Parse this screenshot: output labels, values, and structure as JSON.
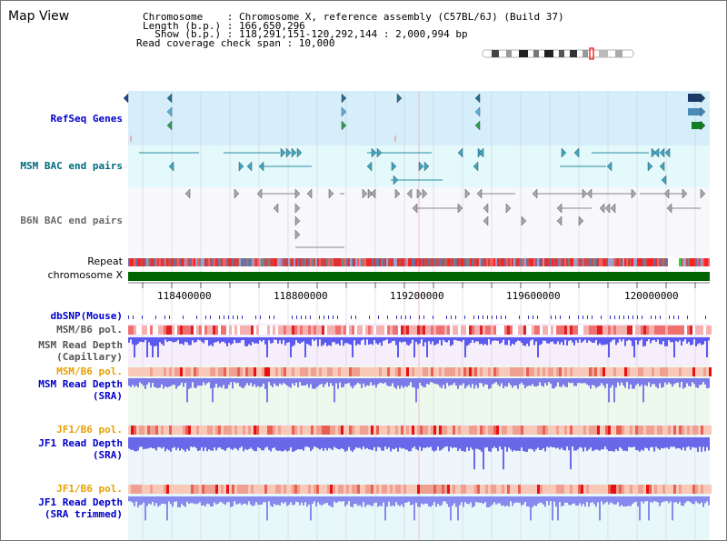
{
  "page": {
    "title": "Map View"
  },
  "info": {
    "chromosome": "Chromosome    : Chromosome X, reference assembly (C57BL/6J) (Build 37)",
    "length": "Length (b.p.) : 166,650,296",
    "show": "  Show (b.p.) : 118,291,151-120,292,144 : 2,000,994 bp",
    "coverage": "Read coverage check span : 10,000"
  },
  "tracks": {
    "refseq": "RefSeq Genes",
    "msm_bac": "MSM BAC end pairs",
    "b6n_bac": "B6N BAC end pairs",
    "repeat": "Repeat",
    "chromosome": "chromosome X",
    "dbsnp": "dbSNP(Mouse)",
    "msm_b6_pol_1": "MSM/B6 pol.",
    "msm_depth_cap_1": "MSM Read Depth",
    "msm_depth_cap_2": "(Capillary)",
    "msm_b6_pol_2": "MSM/B6 pol.",
    "msm_depth_sra_1": "MSM Read Depth",
    "msm_depth_sra_2": "(SRA)",
    "jf1_b6_pol_1": "JF1/B6 pol.",
    "jf1_depth_sra_1": "JF1 Read Depth",
    "jf1_depth_sra_2": "(SRA)",
    "jf1_b6_pol_2": "JF1/B6 pol.",
    "jf1_depth_trim_1": "JF1 Read Depth",
    "jf1_depth_trim_2": "(SRA trimmed)"
  },
  "axis": {
    "ticks": [
      "118400000",
      "118800000",
      "119200000",
      "119600000",
      "120000000"
    ]
  },
  "colors": {
    "refseq_band": "#d5eef9",
    "msm_bac_band": "#e4f9fb",
    "msm_label": "#006a7e",
    "b6n_label": "#6a6a6a",
    "dbsnp_label": "#0000cc",
    "pol_orange": "#e8a000",
    "chromosome_bar": "#006400",
    "depth_blue": "#4a4ae6"
  }
}
